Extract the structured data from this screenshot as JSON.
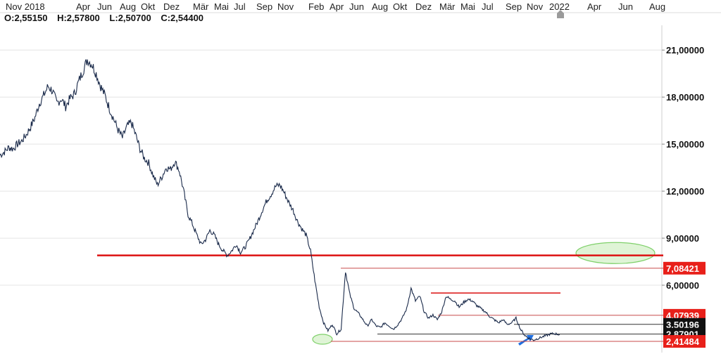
{
  "ohlc": {
    "open_label": "O:",
    "open": "2,55150",
    "high_label": "H:",
    "high": "2,57800",
    "low_label": "L:",
    "low": "2,50700",
    "close_label": "C:",
    "close": "2,54400"
  },
  "chart_data": {
    "type": "line",
    "x_tick_labels": [
      "Nov 2018",
      "Apr",
      "Jun",
      "Aug",
      "Okt",
      "Dez",
      "Mär",
      "Mai",
      "Jul",
      "Sep",
      "Nov",
      "Feb",
      "Apr",
      "Jun",
      "Aug",
      "Okt",
      "Dez",
      "Mär",
      "Mai",
      "Jul",
      "Sep",
      "Nov",
      "2022",
      "Apr",
      "Jun",
      "Aug"
    ],
    "y_ticks": [
      {
        "value": 21,
        "label": "21,00000"
      },
      {
        "value": 18,
        "label": "18,00000"
      },
      {
        "value": 15,
        "label": "15,00000"
      },
      {
        "value": 12,
        "label": "12,00000"
      },
      {
        "value": 9,
        "label": "9,00000"
      },
      {
        "value": 6,
        "label": "6,00000"
      }
    ],
    "ylim": [
      1.7,
      22.4
    ],
    "series": [
      {
        "points": [
          [
            0,
            14.3
          ],
          [
            1,
            14.5
          ],
          [
            2,
            14.8
          ],
          [
            3,
            14.7
          ],
          [
            4,
            15.0
          ],
          [
            5,
            15.2
          ],
          [
            6,
            15.6
          ],
          [
            7,
            16.1
          ],
          [
            8,
            16.7
          ],
          [
            9,
            17.6
          ],
          [
            10,
            18.1
          ],
          [
            11,
            18.7
          ],
          [
            12,
            18.4
          ],
          [
            13,
            17.6
          ],
          [
            14,
            17.9
          ],
          [
            15,
            17.4
          ],
          [
            16,
            17.9
          ],
          [
            17,
            18.2
          ],
          [
            18,
            19.0
          ],
          [
            19,
            19.7
          ],
          [
            20,
            20.4
          ],
          [
            21,
            20.1
          ],
          [
            22,
            19.5
          ],
          [
            23,
            18.7
          ],
          [
            24,
            18.1
          ],
          [
            25,
            17.3
          ],
          [
            26,
            16.6
          ],
          [
            27,
            15.9
          ],
          [
            28,
            15.4
          ],
          [
            29,
            16.1
          ],
          [
            30,
            16.4
          ],
          [
            31,
            15.6
          ],
          [
            32,
            14.7
          ],
          [
            33,
            14.1
          ],
          [
            34,
            13.8
          ],
          [
            35,
            13.0
          ],
          [
            36,
            12.4
          ],
          [
            37,
            12.9
          ],
          [
            38,
            13.5
          ],
          [
            39,
            13.4
          ],
          [
            40,
            13.9
          ],
          [
            41,
            13.3
          ],
          [
            42,
            12.0
          ],
          [
            43,
            10.5
          ],
          [
            44,
            9.9
          ],
          [
            45,
            9.2
          ],
          [
            46,
            8.6
          ],
          [
            47,
            8.9
          ],
          [
            48,
            9.5
          ],
          [
            49,
            9.2
          ],
          [
            50,
            8.6
          ],
          [
            51,
            8.2
          ],
          [
            52,
            7.9
          ],
          [
            53,
            8.2
          ],
          [
            54,
            8.6
          ],
          [
            55,
            8.1
          ],
          [
            56,
            8.4
          ],
          [
            57,
            8.9
          ],
          [
            58,
            9.5
          ],
          [
            59,
            10.1
          ],
          [
            60,
            10.8
          ],
          [
            61,
            11.4
          ],
          [
            62,
            11.8
          ],
          [
            63,
            12.3
          ],
          [
            64,
            12.4
          ],
          [
            65,
            11.9
          ],
          [
            66,
            11.3
          ],
          [
            67,
            10.8
          ],
          [
            68,
            10.1
          ],
          [
            69,
            9.6
          ],
          [
            70,
            9.2
          ],
          [
            71,
            8.2
          ],
          [
            72,
            6.3
          ],
          [
            73,
            4.6
          ],
          [
            74,
            3.6
          ],
          [
            75,
            3.1
          ],
          [
            76,
            3.5
          ],
          [
            77,
            2.9
          ],
          [
            78,
            3.2
          ],
          [
            79,
            6.9
          ],
          [
            80,
            5.4
          ],
          [
            81,
            4.5
          ],
          [
            82,
            4.2
          ],
          [
            83,
            3.8
          ],
          [
            84,
            3.4
          ],
          [
            85,
            3.8
          ],
          [
            86,
            3.4
          ],
          [
            87,
            3.3
          ],
          [
            88,
            3.6
          ],
          [
            89,
            3.4
          ],
          [
            90,
            3.2
          ],
          [
            91,
            3.5
          ],
          [
            92,
            3.9
          ],
          [
            93,
            4.5
          ],
          [
            94,
            5.8
          ],
          [
            95,
            5.0
          ],
          [
            96,
            5.3
          ],
          [
            97,
            4.3
          ],
          [
            98,
            3.9
          ],
          [
            99,
            4.1
          ],
          [
            100,
            3.8
          ],
          [
            101,
            4.3
          ],
          [
            102,
            5.3
          ],
          [
            103,
            5.1
          ],
          [
            104,
            5.0
          ],
          [
            105,
            4.6
          ],
          [
            106,
            4.9
          ],
          [
            107,
            5.1
          ],
          [
            108,
            5.0
          ],
          [
            109,
            4.7
          ],
          [
            110,
            4.5
          ],
          [
            111,
            4.3
          ],
          [
            112,
            4.0
          ],
          [
            113,
            3.8
          ],
          [
            114,
            3.6
          ],
          [
            115,
            3.8
          ],
          [
            116,
            3.5
          ],
          [
            117,
            3.6
          ],
          [
            118,
            3.9
          ],
          [
            119,
            3.2
          ],
          [
            120,
            2.8
          ],
          [
            121,
            2.6
          ],
          [
            122,
            2.5
          ],
          [
            123,
            2.6
          ],
          [
            124,
            2.7
          ],
          [
            125,
            2.8
          ],
          [
            126,
            2.9
          ],
          [
            127,
            2.9
          ],
          [
            128,
            2.85
          ]
        ]
      }
    ],
    "horizontal_lines": [
      {
        "value": 7.9,
        "color": "#dd1111",
        "weight": "heavy"
      },
      {
        "value": 7.08421,
        "color": "#c84a4a",
        "weight": "thin"
      },
      {
        "value": 5.5,
        "color": "#dd2222",
        "weight": "medium"
      },
      {
        "value": 4.07939,
        "color": "#c84a4a",
        "weight": "thin"
      },
      {
        "value": 3.50196,
        "color": "#333333",
        "weight": "thin"
      },
      {
        "value": 2.87901,
        "color": "#333333",
        "weight": "thin"
      },
      {
        "value": 2.41484,
        "color": "#c84a4a",
        "weight": "thin"
      }
    ],
    "price_badges": [
      {
        "value": 7.08421,
        "label": "7,08421",
        "bg": "#e8201a",
        "fg": "#ffffff"
      },
      {
        "value": 4.07939,
        "label": "4,07939",
        "bg": "#e8201a",
        "fg": "#ffffff"
      },
      {
        "value": 3.50196,
        "label": "3,50196",
        "bg": "#111111",
        "fg": "#ffffff"
      },
      {
        "value": 2.87901,
        "label": "2,87901",
        "bg": "#111111",
        "fg": "#ffffff"
      },
      {
        "value": 2.41484,
        "label": "2,41484",
        "bg": "#e8201a",
        "fg": "#ffffff"
      }
    ],
    "annotations": [
      {
        "kind": "ellipse",
        "color": "#7fd06a",
        "label": "target-zone"
      },
      {
        "kind": "ellipse",
        "color": "#7fd06a",
        "label": "support-low"
      },
      {
        "kind": "arrow",
        "color": "#1f6fe0",
        "label": "current-low-pointer"
      }
    ],
    "colors": {
      "price": "#1a2a4a",
      "grid": "#e4e4e4"
    }
  }
}
